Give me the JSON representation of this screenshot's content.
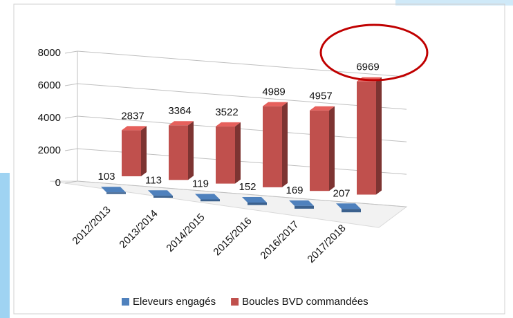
{
  "chart_data": {
    "type": "bar3d",
    "categories": [
      "2012/2013",
      "2013/2014",
      "2014/2015",
      "2015/2016",
      "2016/2017",
      "2017/2018"
    ],
    "series": [
      {
        "name": "Eleveurs engagés",
        "color": "#4f81bd",
        "values": [
          103,
          113,
          119,
          152,
          169,
          207
        ]
      },
      {
        "name": "Boucles BVD commandées",
        "color": "#c0504d",
        "values": [
          2837,
          3364,
          3522,
          4989,
          4957,
          6969
        ]
      }
    ],
    "ylim": [
      0,
      8000
    ],
    "yticks": [
      0,
      2000,
      4000,
      6000,
      8000
    ],
    "grid": true
  }
}
